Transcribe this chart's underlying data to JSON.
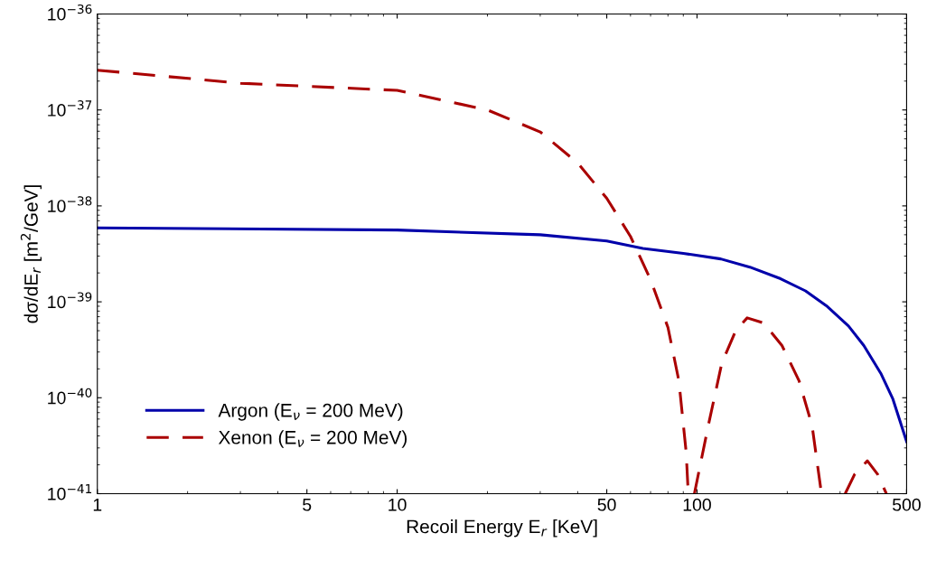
{
  "chart_data": {
    "type": "line",
    "xlabel": "Recoil Energy E$_{r}$ [KeV]",
    "ylabel": "dσ/dE$_{r}$ [m$^{2}$/GeV]",
    "log": "xy",
    "xlim": [
      1,
      500
    ],
    "ylim": [
      1e-41,
      1e-36
    ],
    "xticks": [
      1,
      5,
      10,
      50,
      100,
      500
    ],
    "yticks": [
      {
        "value": 1e-41,
        "label": "10$^{−41}$"
      },
      {
        "value": 1e-40,
        "label": "10$^{−40}$"
      },
      {
        "value": 1e-39,
        "label": "10$^{−39}$"
      },
      {
        "value": 1e-38,
        "label": "10$^{−38}$"
      },
      {
        "value": 1e-37,
        "label": "10$^{−37}$"
      },
      {
        "value": 1e-36,
        "label": "10$^{−36}$"
      }
    ],
    "grid": false,
    "legend": "bottom left",
    "series": [
      {
        "name": "Argon (E$_{ν}$ = 200 MeV)",
        "color": "#0000aa",
        "line_style": "solid",
        "x": [
          1,
          10,
          30,
          50,
          66,
          90,
          120,
          150,
          190,
          230,
          270,
          320,
          360,
          410,
          450,
          500
        ],
        "values": [
          5.9e-39,
          5.6e-39,
          5e-39,
          4.3e-39,
          3.6e-39,
          3.2e-39,
          2.8e-39,
          2.3e-39,
          1.74e-39,
          1.3e-39,
          9.1e-40,
          5.6e-40,
          3.5e-40,
          1.8e-40,
          9.7e-41,
          3.5e-41
        ]
      },
      {
        "name": "Xenon (E$_{ν}$ = 200 MeV)",
        "color": "#aa0000",
        "line_style": "dashed",
        "x": [
          1,
          3,
          10,
          20,
          30,
          40,
          50,
          60,
          70,
          80,
          87,
          92,
          93.5,
          94,
          98,
          109,
          121,
          135,
          147,
          167,
          192,
          219,
          242,
          260,
          262,
          312,
          335,
          370,
          400,
          428
        ],
        "values": [
          2.6e-37,
          1.9e-37,
          1.6e-37,
          1e-37,
          5.9e-38,
          2.8e-38,
          1.2e-38,
          4.8e-39,
          1.7e-39,
          5.4e-40,
          1.5e-40,
          2.7e-41,
          1e-41,
          null,
          1e-41,
          5.1e-41,
          2.3e-40,
          5.1e-40,
          6.8e-40,
          6e-40,
          3.5e-40,
          1.5e-40,
          5.1e-41,
          1e-41,
          null,
          1e-41,
          1.58e-41,
          2.2e-41,
          1.6e-41,
          1e-41
        ]
      }
    ]
  }
}
